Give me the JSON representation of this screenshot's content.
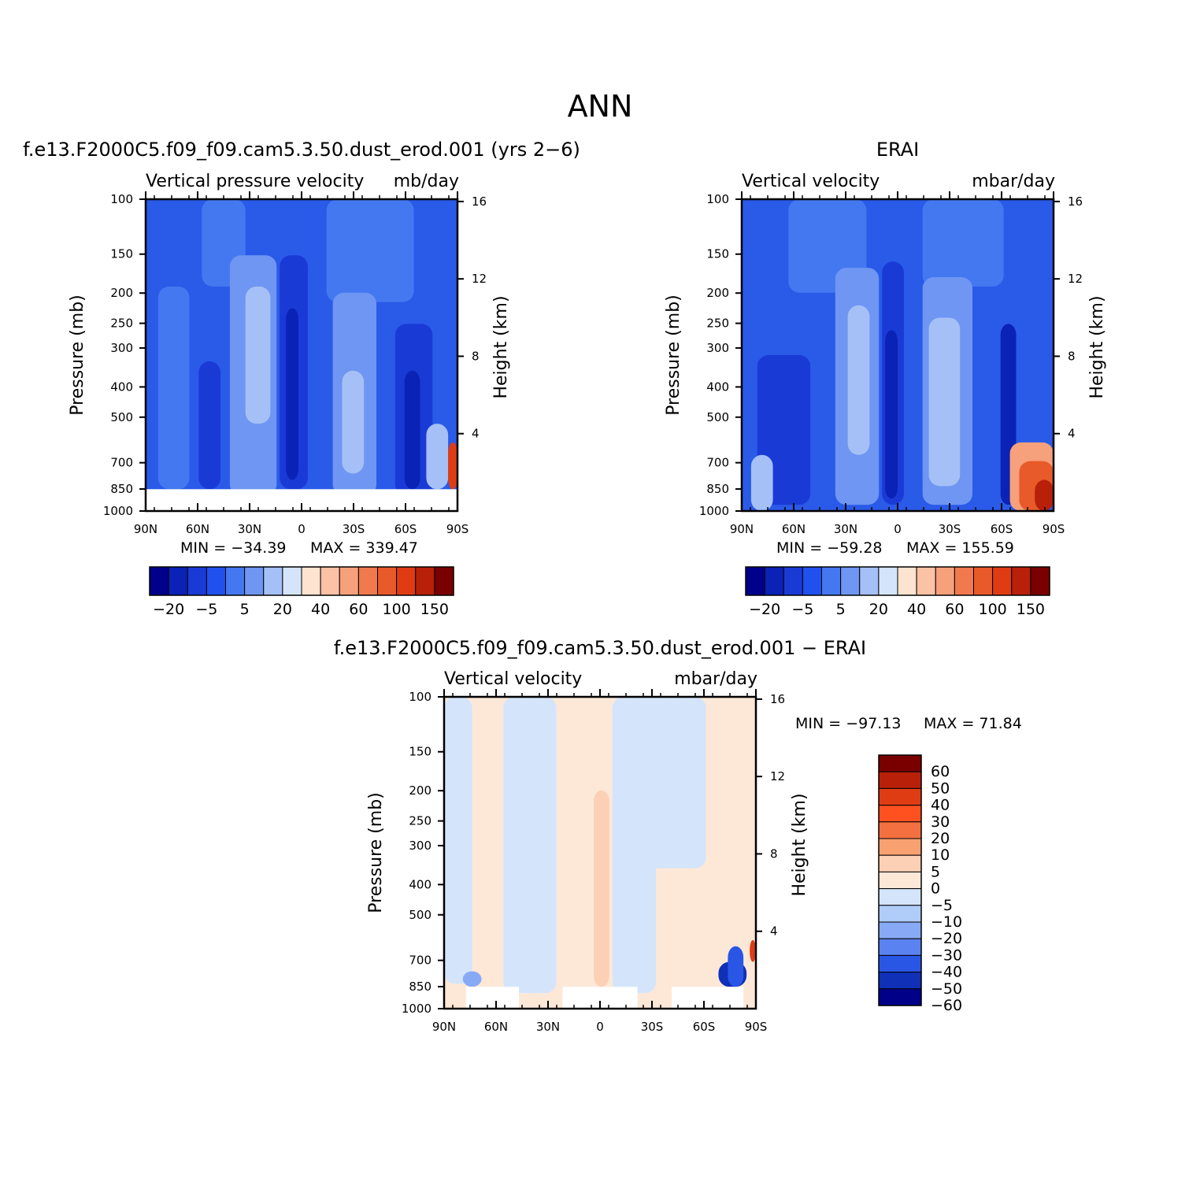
{
  "figure": {
    "main_title": "ANN",
    "diff_title": "f.e13.F2000C5.f09_f09.cam5.3.50.dust_erod.001 − ERAI"
  },
  "chart_data": [
    {
      "type": "heatmap",
      "title": "f.e13.F2000C5.f09_f09.cam5.3.50.dust_erod.001 (yrs 2−6)",
      "field_label": "Vertical pressure velocity",
      "units": "mb/day",
      "ylabel": "Pressure (mb)",
      "y2label": "Height (km)",
      "x_ticks": [
        "90N",
        "60N",
        "30N",
        "0",
        "30S",
        "60S",
        "90S"
      ],
      "y_ticks": [
        100,
        150,
        200,
        250,
        300,
        400,
        500,
        700,
        850,
        1000
      ],
      "y2_ticks": [
        16,
        12,
        8,
        4
      ],
      "y_scale": "log",
      "ylim": [
        1000,
        100
      ],
      "min": "MIN = −34.39",
      "max": "MAX = 339.47",
      "colorbar_labels": [
        "−20",
        "−5",
        "5",
        "20",
        "40",
        "60",
        "100",
        "150"
      ],
      "colorbar_orientation": "horizontal",
      "colors": [
        "#00008b",
        "#0a22b5",
        "#1a3ad6",
        "#2050ee",
        "#4478f0",
        "#6e96f2",
        "#a5c0f6",
        "#d4e5fb",
        "#fde3d0",
        "#fbc2a6",
        "#f6a07c",
        "#f07a4d",
        "#e85a2a",
        "#e03c14",
        "#b8200a",
        "#7a0000"
      ]
    },
    {
      "type": "heatmap",
      "title": "ERAI",
      "field_label": "Vertical velocity",
      "units": "mbar/day",
      "ylabel": "Pressure (mb)",
      "y2label": "Height (km)",
      "x_ticks": [
        "90N",
        "60N",
        "30N",
        "0",
        "30S",
        "60S",
        "90S"
      ],
      "y_ticks": [
        100,
        150,
        200,
        250,
        300,
        400,
        500,
        700,
        850,
        1000
      ],
      "y2_ticks": [
        16,
        12,
        8,
        4
      ],
      "y_scale": "log",
      "ylim": [
        1000,
        100
      ],
      "min": "MIN = −59.28",
      "max": "MAX = 155.59",
      "colorbar_labels": [
        "−20",
        "−5",
        "5",
        "20",
        "40",
        "60",
        "100",
        "150"
      ],
      "colorbar_orientation": "horizontal",
      "colors": [
        "#00008b",
        "#0a22b5",
        "#1a3ad6",
        "#2050ee",
        "#4478f0",
        "#6e96f2",
        "#a5c0f6",
        "#d4e5fb",
        "#fde3d0",
        "#fbc2a6",
        "#f6a07c",
        "#f07a4d",
        "#e85a2a",
        "#e03c14",
        "#b8200a",
        "#7a0000"
      ]
    },
    {
      "type": "heatmap",
      "title": "f.e13.F2000C5.f09_f09.cam5.3.50.dust_erod.001 − ERAI",
      "field_label": "Vertical velocity",
      "units": "mbar/day",
      "ylabel": "Pressure (mb)",
      "y2label": "Height (km)",
      "x_ticks": [
        "90N",
        "60N",
        "30N",
        "0",
        "30S",
        "60S",
        "90S"
      ],
      "y_ticks": [
        100,
        150,
        200,
        250,
        300,
        400,
        500,
        700,
        850,
        1000
      ],
      "y2_ticks": [
        16,
        12,
        8,
        4
      ],
      "y_scale": "log",
      "ylim": [
        1000,
        100
      ],
      "min": "MIN = −97.13",
      "max": "MAX =   71.84",
      "colorbar_labels": [
        "60",
        "50",
        "40",
        "30",
        "20",
        "10",
        "5",
        "0",
        "−5",
        "−10",
        "−20",
        "−30",
        "−40",
        "−50",
        "−60"
      ],
      "colorbar_orientation": "vertical",
      "colors": [
        "#7a0000",
        "#b8200a",
        "#e03c14",
        "#ff5020",
        "#f47040",
        "#f8a070",
        "#fcd0b4",
        "#fde8d8",
        "#d4e5fb",
        "#b0ccf8",
        "#88aaf6",
        "#5a82f0",
        "#2a56e6",
        "#1030b8",
        "#000088"
      ]
    }
  ]
}
